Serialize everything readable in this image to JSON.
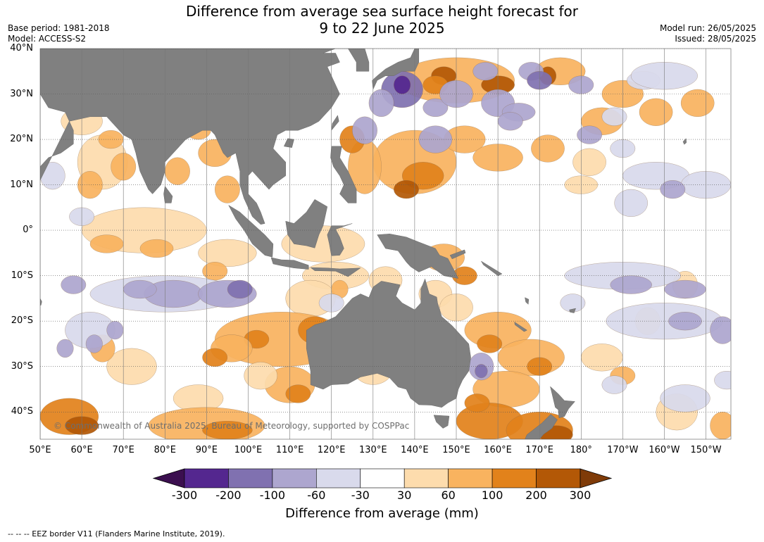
{
  "title": {
    "line1": "Difference from average sea surface height forecast for",
    "line2": "9 to 22 June 2025"
  },
  "meta": {
    "base_period": "Base period: 1981-2018",
    "model": "Model: ACCESS-S2",
    "model_run": "Model run: 26/05/2025",
    "issued": "Issued: 28/05/2025"
  },
  "map": {
    "extent": {
      "lon_min": 50,
      "lon_max": 216,
      "lat_min": -46,
      "lat_max": 40
    },
    "latitudes": [
      {
        "value": 40,
        "label": "40°N"
      },
      {
        "value": 30,
        "label": "30°N"
      },
      {
        "value": 20,
        "label": "20°N"
      },
      {
        "value": 10,
        "label": "10°N"
      },
      {
        "value": 0,
        "label": "0°"
      },
      {
        "value": -10,
        "label": "10°S"
      },
      {
        "value": -20,
        "label": "20°S"
      },
      {
        "value": -30,
        "label": "30°S"
      },
      {
        "value": -40,
        "label": "40°S"
      }
    ],
    "longitudes": [
      {
        "value": 50,
        "label": "50°E"
      },
      {
        "value": 60,
        "label": "60°E"
      },
      {
        "value": 70,
        "label": "70°E"
      },
      {
        "value": 80,
        "label": "80°E"
      },
      {
        "value": 90,
        "label": "90°E"
      },
      {
        "value": 100,
        "label": "100°E"
      },
      {
        "value": 110,
        "label": "110°E"
      },
      {
        "value": 120,
        "label": "120°E"
      },
      {
        "value": 130,
        "label": "130°E"
      },
      {
        "value": 140,
        "label": "140°E"
      },
      {
        "value": 150,
        "label": "150°E"
      },
      {
        "value": 160,
        "label": "160°E"
      },
      {
        "value": 170,
        "label": "170°E"
      },
      {
        "value": 180,
        "label": "180°"
      },
      {
        "value": 190,
        "label": "170°W"
      },
      {
        "value": 200,
        "label": "160°W"
      },
      {
        "value": 210,
        "label": "150°W"
      }
    ],
    "land_color": "#808080",
    "copyright": "© Commonwealth of Australia 2025, Bureau of Meteorology, supported by COSPPac"
  },
  "colorbar": {
    "title": "Difference from average (mm)",
    "ticks": [
      "-300",
      "-200",
      "-100",
      "-60",
      "-30",
      "30",
      "60",
      "100",
      "200",
      "300"
    ],
    "colors": [
      "#54278f",
      "#8071b0",
      "#ada6cf",
      "#d9daec",
      "#ffffff",
      "#fddcad",
      "#f9b35f",
      "#e2821b",
      "#b35806"
    ],
    "under_color": "#3b0f4f",
    "over_color": "#7f3b08"
  },
  "footer": "--  --  -- EEZ border V11 (Flanders Marine Institute, 2019)."
}
